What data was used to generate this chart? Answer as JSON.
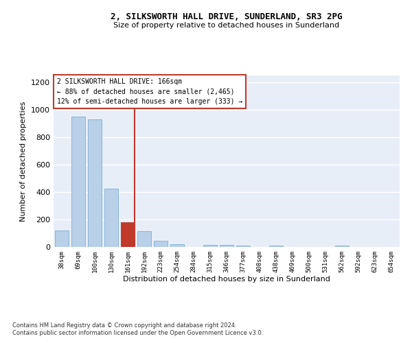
{
  "title_line1": "2, SILKSWORTH HALL DRIVE, SUNDERLAND, SR3 2PG",
  "title_line2": "Size of property relative to detached houses in Sunderland",
  "xlabel": "Distribution of detached houses by size in Sunderland",
  "ylabel": "Number of detached properties",
  "categories": [
    "38sqm",
    "69sqm",
    "100sqm",
    "130sqm",
    "161sqm",
    "192sqm",
    "223sqm",
    "254sqm",
    "284sqm",
    "315sqm",
    "346sqm",
    "377sqm",
    "408sqm",
    "438sqm",
    "469sqm",
    "500sqm",
    "531sqm",
    "562sqm",
    "592sqm",
    "623sqm",
    "654sqm"
  ],
  "values": [
    120,
    950,
    930,
    425,
    180,
    115,
    45,
    20,
    0,
    15,
    15,
    10,
    0,
    8,
    0,
    0,
    0,
    8,
    0,
    0,
    0
  ],
  "bar_color": "#b8d0e8",
  "bar_edge_color": "#7aafd4",
  "highlight_index": 4,
  "highlight_color": "#c0392b",
  "annotation_title": "2 SILKSWORTH HALL DRIVE: 166sqm",
  "annotation_line2": "← 88% of detached houses are smaller (2,465)",
  "annotation_line3": "12% of semi-detached houses are larger (333) →",
  "ylim": [
    0,
    1250
  ],
  "yticks": [
    0,
    200,
    400,
    600,
    800,
    1000,
    1200
  ],
  "footer_line1": "Contains HM Land Registry data © Crown copyright and database right 2024.",
  "footer_line2": "Contains public sector information licensed under the Open Government Licence v3.0.",
  "background_color": "#e8eef8",
  "grid_color": "#ffffff",
  "fig_background": "#ffffff"
}
